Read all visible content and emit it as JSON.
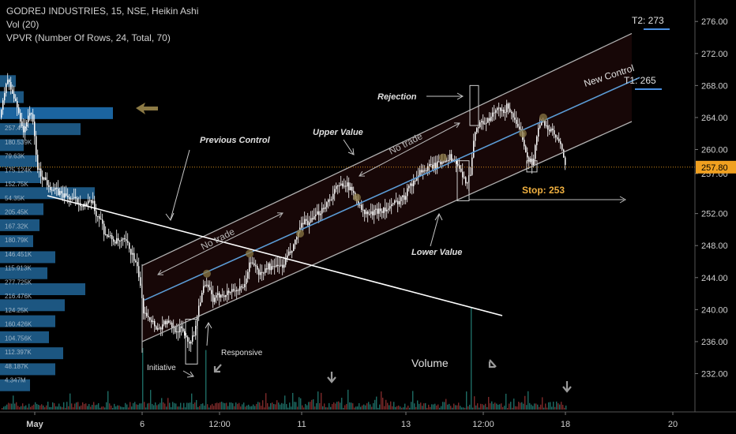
{
  "header": {
    "title": "GODREJ INDUSTRIES, 15, NSE, Heikin Ashi",
    "indicator_vol": "Vol (20)",
    "indicator_vpvr": "VPVR (Number Of Rows, 24, Total, 70)"
  },
  "colors": {
    "background": "#000000",
    "candle": "#ffffff",
    "channel": "#b0b0b0",
    "channel_fill": "#1a0808",
    "control_line": "#5b9bd5",
    "trendline": "#ffffff",
    "vpvr_bar": "#1f5f8f",
    "vpvr_highlight": "#1e6fb0",
    "vol_up": "#1d6b63",
    "vol_down": "#7d2a2a",
    "price_badge": "#f0a020",
    "target_line": "#4a90e2",
    "arrow_gold": "#8c7a45",
    "label_text": "#e0e0e0",
    "stop_text": "#f0b040"
  },
  "annotations": {
    "t2": "T2: 273",
    "t1": "T1: 265",
    "new_control": "New Control",
    "rejection": "Rejection",
    "upper_value": "Upper Value",
    "previous_control": "Previous Control",
    "no_trade_top": "No trade",
    "no_trade_bottom": "No trade",
    "lower_value": "Lower Value",
    "stop": "Stop: 253",
    "responsive": "Responsive",
    "initiative": "Initiative",
    "volume": "Volume"
  },
  "vpvr_labels": [
    "257.47K",
    "180.539K",
    "79.63K",
    "175.124K",
    "152.75K",
    "54.35K",
    "205.45K",
    "167.32K",
    "180.79K",
    "146.451K",
    "115.913K",
    "277.725K",
    "216.476K",
    "124.25K",
    "160.426K",
    "104.756K",
    "112.397K",
    "48.187K",
    "4.347M"
  ],
  "chart_data": {
    "type": "candlestick",
    "symbol": "GODREJ INDUSTRIES",
    "interval": "15",
    "exchange": "NSE",
    "style": "Heikin Ashi",
    "current_price": 257.8,
    "y_ticks": [
      276.0,
      272.0,
      268.0,
      264.0,
      260.0,
      257.0,
      252.0,
      248.0,
      244.0,
      240.0,
      236.0,
      232.0
    ],
    "ylim": [
      228.5,
      277.5
    ],
    "x_ticks": [
      {
        "label": "May",
        "t": 44
      },
      {
        "label": "6",
        "t": 180
      },
      {
        "label": "12:00",
        "t": 278
      },
      {
        "label": "11",
        "t": 382
      },
      {
        "label": "13",
        "t": 514
      },
      {
        "label": "12:00",
        "t": 612
      },
      {
        "label": "18",
        "t": 716
      },
      {
        "label": "20",
        "t": 852
      }
    ],
    "price_path": [
      [
        0,
        264
      ],
      [
        8,
        269
      ],
      [
        15,
        267
      ],
      [
        22,
        265
      ],
      [
        30,
        262
      ],
      [
        36,
        265
      ],
      [
        42,
        263
      ],
      [
        46,
        258
      ],
      [
        50,
        257
      ],
      [
        58,
        256
      ],
      [
        66,
        255
      ],
      [
        76,
        254.5
      ],
      [
        86,
        254
      ],
      [
        98,
        253.5
      ],
      [
        108,
        253
      ],
      [
        116,
        253.5
      ],
      [
        120,
        252
      ],
      [
        126,
        251.5
      ],
      [
        132,
        249.5
      ],
      [
        138,
        249
      ],
      [
        146,
        248.5
      ],
      [
        152,
        248.5
      ],
      [
        158,
        248.5
      ],
      [
        164,
        247.5
      ],
      [
        170,
        246
      ],
      [
        176,
        244
      ],
      [
        180,
        240
      ],
      [
        186,
        239.5
      ],
      [
        192,
        238.5
      ],
      [
        200,
        237.5
      ],
      [
        208,
        238.5
      ],
      [
        216,
        238
      ],
      [
        222,
        237.5
      ],
      [
        230,
        237.5
      ],
      [
        238,
        236
      ],
      [
        244,
        236.5
      ],
      [
        252,
        241
      ],
      [
        258,
        243
      ],
      [
        264,
        242.5
      ],
      [
        270,
        241
      ],
      [
        278,
        242
      ],
      [
        286,
        242
      ],
      [
        294,
        242.5
      ],
      [
        300,
        242.5
      ],
      [
        308,
        242.5
      ],
      [
        314,
        245.5
      ],
      [
        320,
        246
      ],
      [
        326,
        244.5
      ],
      [
        332,
        244.5
      ],
      [
        338,
        245.5
      ],
      [
        346,
        245
      ],
      [
        352,
        246
      ],
      [
        356,
        245
      ],
      [
        362,
        246.5
      ],
      [
        370,
        247.5
      ],
      [
        378,
        250
      ],
      [
        386,
        251
      ],
      [
        394,
        251
      ],
      [
        402,
        252
      ],
      [
        410,
        253
      ],
      [
        418,
        254
      ],
      [
        424,
        255
      ],
      [
        430,
        255.5
      ],
      [
        436,
        256
      ],
      [
        442,
        255
      ],
      [
        448,
        254.5
      ],
      [
        454,
        253
      ],
      [
        460,
        252
      ],
      [
        466,
        252
      ],
      [
        472,
        252
      ],
      [
        478,
        252.5
      ],
      [
        484,
        252.5
      ],
      [
        490,
        252.5
      ],
      [
        496,
        253
      ],
      [
        502,
        253.5
      ],
      [
        508,
        254
      ],
      [
        512,
        254
      ],
      [
        516,
        256
      ],
      [
        522,
        255.5
      ],
      [
        528,
        257
      ],
      [
        534,
        257.5
      ],
      [
        540,
        257.5
      ],
      [
        546,
        258
      ],
      [
        552,
        258
      ],
      [
        558,
        258.5
      ],
      [
        564,
        259
      ],
      [
        570,
        259
      ],
      [
        576,
        258.5
      ],
      [
        580,
        258
      ],
      [
        584,
        256.5
      ],
      [
        590,
        256
      ],
      [
        596,
        257.5
      ],
      [
        600,
        262.5
      ],
      [
        606,
        263
      ],
      [
        612,
        263.5
      ],
      [
        618,
        263.5
      ],
      [
        624,
        264.5
      ],
      [
        630,
        265
      ],
      [
        636,
        264.5
      ],
      [
        642,
        265.5
      ],
      [
        648,
        264.5
      ],
      [
        654,
        262.5
      ],
      [
        660,
        262
      ],
      [
        666,
        259.5
      ],
      [
        670,
        258.5
      ],
      [
        674,
        258.5
      ],
      [
        678,
        261
      ],
      [
        682,
        263
      ],
      [
        688,
        263.5
      ],
      [
        694,
        262.5
      ],
      [
        700,
        262
      ],
      [
        706,
        261
      ],
      [
        712,
        259.5
      ],
      [
        716,
        257.8
      ]
    ],
    "volume_spikes": [
      {
        "t": 180,
        "vol": 0.6
      },
      {
        "t": 260,
        "vol": 0.58
      },
      {
        "t": 596,
        "vol": 1.0
      }
    ]
  }
}
